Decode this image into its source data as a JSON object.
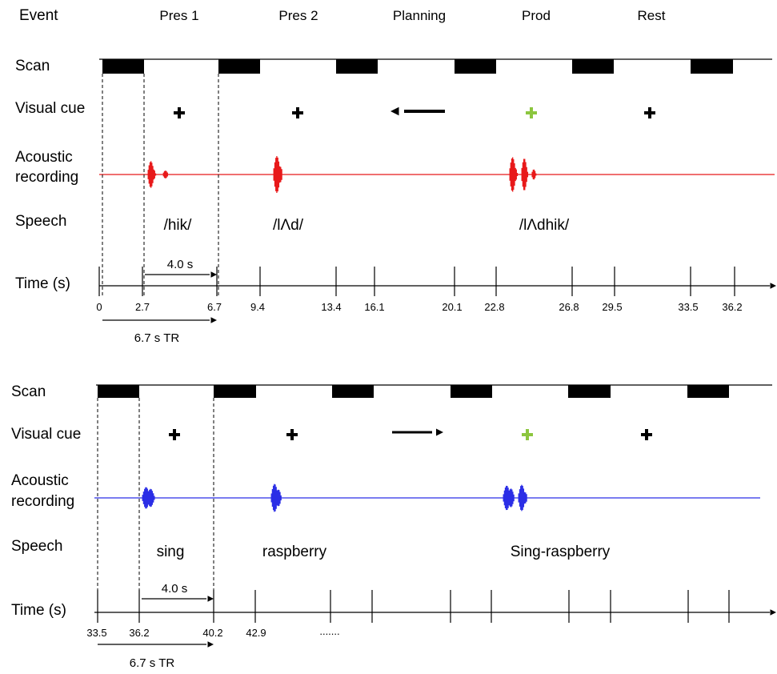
{
  "events": {
    "label": "Event",
    "items": [
      {
        "id": "pres1",
        "label": "Pres 1"
      },
      {
        "id": "pres2",
        "label": "Pres 2"
      },
      {
        "id": "planning",
        "label": "Planning"
      },
      {
        "id": "prod",
        "label": "Prod"
      },
      {
        "id": "rest",
        "label": "Rest"
      }
    ]
  },
  "row_labels": {
    "scan": "Scan",
    "visual_cue": "Visual cue",
    "acoustic_line1": "Acoustic",
    "acoustic_line2": "recording",
    "speech": "Speech",
    "time": "Time (s)"
  },
  "colors": {
    "red_recording": "#e8191a",
    "blue_recording": "#2b2ee6",
    "green_cue": "#8cc63f",
    "black": "#000000"
  },
  "panels": [
    {
      "id": "top",
      "recording_color": "#e8191a",
      "arrow_direction": "left",
      "speech": {
        "pres1": "/hik/",
        "pres2": "/lΛd/",
        "prod": "/lΛdhik/"
      },
      "time_ticks": [
        "0",
        "2.7",
        "6.7",
        "9.4",
        "13.4",
        "16.1",
        "20.1",
        "22.8",
        "26.8",
        "29.5",
        "33.5",
        "36.2"
      ],
      "interval_label": "4.0 s",
      "tr_label": "6.7 s TR",
      "ellipsis": ""
    },
    {
      "id": "bottom",
      "recording_color": "#2b2ee6",
      "arrow_direction": "right",
      "speech": {
        "pres1": "sing",
        "pres2": "raspberry",
        "prod": "Sing-raspberry"
      },
      "time_ticks": [
        "33.5",
        "36.2",
        "40.2",
        "42.9"
      ],
      "interval_label": "4.0 s",
      "tr_label": "6.7 s TR",
      "ellipsis": "......."
    }
  ]
}
